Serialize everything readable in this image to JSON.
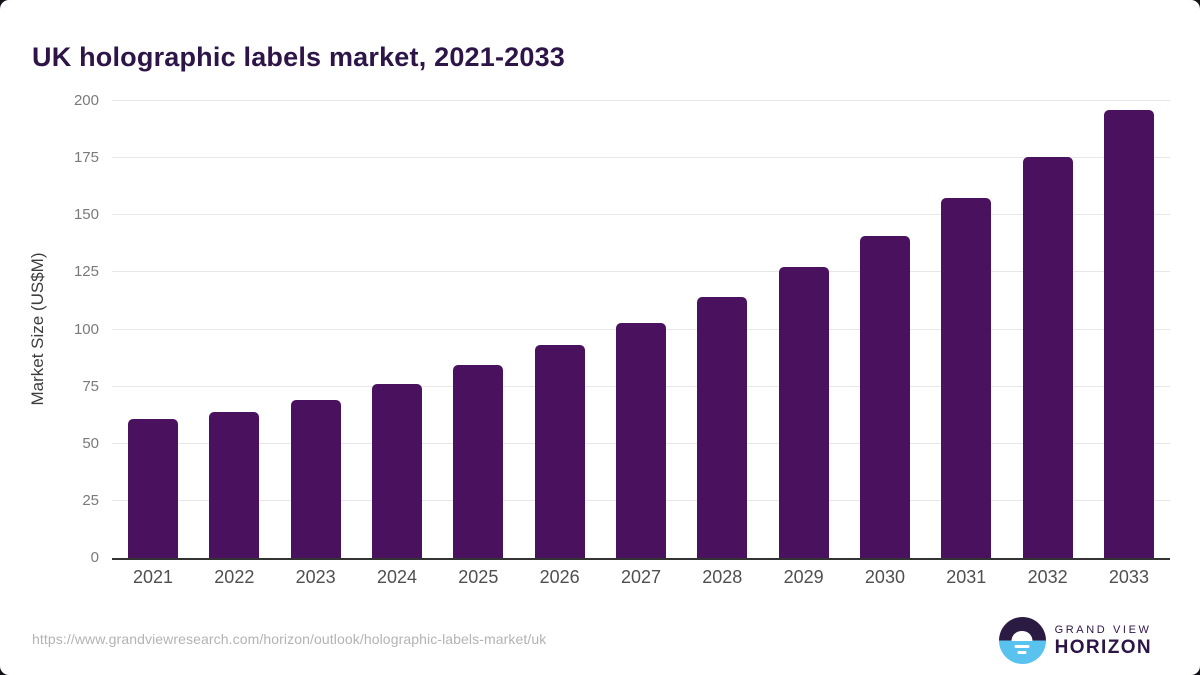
{
  "title": "UK holographic labels market, 2021-2033",
  "source_url": "https://www.grandviewresearch.com/horizon/outlook/holographic-labels-market/uk",
  "logo": {
    "top_text": "GRAND VIEW",
    "bottom_text": "HORIZON"
  },
  "colors": {
    "bar": "#4a115e",
    "title": "#2e1548",
    "axis_line": "#333333",
    "gridline": "#e7e7e7",
    "y_tick_label": "#7a7a7a",
    "x_tick_label": "#4f4f4f",
    "url": "#b3b3b3",
    "logo_dark": "#2b1b43",
    "logo_blue": "#5ac2ee"
  },
  "chart_data": {
    "type": "bar",
    "title": "UK holographic labels market, 2021-2033",
    "categories": [
      "2021",
      "2022",
      "2023",
      "2024",
      "2025",
      "2026",
      "2027",
      "2028",
      "2029",
      "2030",
      "2031",
      "2032",
      "2033"
    ],
    "values": [
      60.8,
      63.9,
      69.1,
      76.1,
      84.5,
      93.2,
      102.8,
      114.2,
      127.3,
      140.9,
      157.5,
      175.5,
      196.1
    ],
    "xlabel": "",
    "ylabel": "Market Size (US$M)",
    "ylim": [
      0,
      200
    ],
    "yticks": [
      0,
      25,
      50,
      75,
      100,
      125,
      150,
      175,
      200
    ],
    "grid": true,
    "legend": false,
    "bar_corner": "rounded-top"
  }
}
